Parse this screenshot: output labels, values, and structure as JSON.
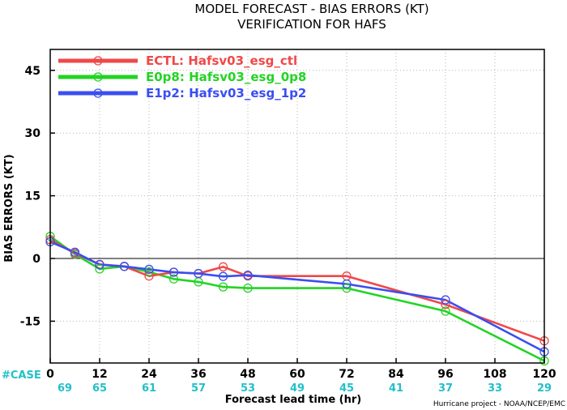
{
  "chart_data": {
    "type": "line",
    "title": "MODEL FORECAST - BIAS ERRORS (KT)",
    "subtitle": "VERIFICATION FOR HAFS",
    "xlabel": "Forecast lead time (hr)",
    "ylabel": "BIAS ERRORS (KT)",
    "xlim": [
      0,
      120
    ],
    "ylim": [
      -25,
      50
    ],
    "x_ticks": [
      0,
      12,
      24,
      36,
      48,
      60,
      72,
      84,
      96,
      108,
      120
    ],
    "y_ticks": [
      -15,
      0,
      15,
      30,
      45
    ],
    "grid": true,
    "legend_position": "top-left",
    "case_label": "#CASE",
    "case_counts": [
      69,
      65,
      61,
      57,
      53,
      49,
      45,
      41,
      37,
      33,
      29
    ],
    "credit": "Hurricane project - NOAA/NCEP/EMC",
    "series": [
      {
        "name": "ECTL: Hafsv03_esg_ctl",
        "color": "#f04848",
        "x": [
          0,
          6,
          12,
          18,
          24,
          30,
          36,
          42,
          48,
          72,
          96,
          120
        ],
        "y": [
          4.5,
          1.2,
          -1.4,
          -1.9,
          -4.2,
          -3.3,
          -3.6,
          -2.0,
          -4.2,
          -4.2,
          -11.0,
          -19.7
        ]
      },
      {
        "name": "E0p8: Hafsv03_esg_0p8",
        "color": "#22d422",
        "x": [
          0,
          6,
          12,
          18,
          24,
          30,
          36,
          42,
          48,
          72,
          96,
          120
        ],
        "y": [
          5.3,
          1.0,
          -2.5,
          -1.9,
          -3.2,
          -4.9,
          -5.6,
          -6.8,
          -7.1,
          -7.1,
          -12.6,
          -24.5
        ]
      },
      {
        "name": "E1p2: Hafsv03_esg_1p2",
        "color": "#3a4ef0",
        "x": [
          0,
          6,
          12,
          18,
          24,
          30,
          36,
          42,
          48,
          72,
          96,
          120
        ],
        "y": [
          4.0,
          1.5,
          -1.5,
          -1.9,
          -2.6,
          -3.3,
          -3.6,
          -4.3,
          -4.0,
          -6.1,
          -9.9,
          -22.3
        ]
      }
    ]
  }
}
